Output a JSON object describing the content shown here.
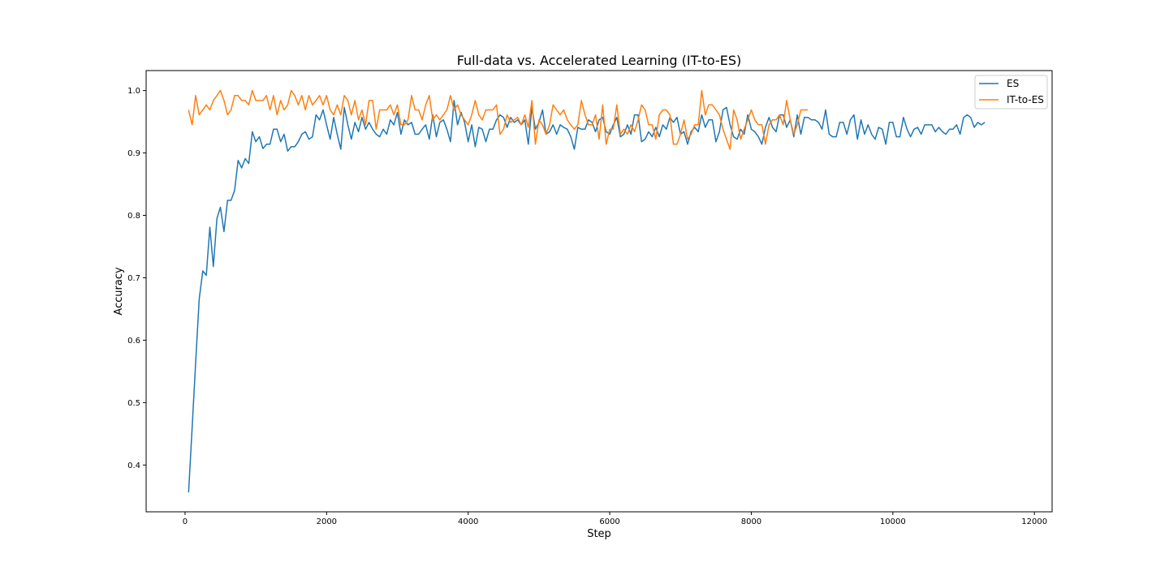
{
  "chart_data": {
    "type": "line",
    "title": "Full-data vs. Accelerated Learning (IT-to-ES)",
    "xlabel": "Step",
    "ylabel": "Accuracy",
    "xlim": [
      -550,
      12250
    ],
    "ylim": [
      0.325,
      1.032
    ],
    "xticks": [
      0,
      2000,
      4000,
      6000,
      8000,
      10000,
      12000
    ],
    "yticks": [
      0.4,
      0.5,
      0.6,
      0.7,
      0.8,
      0.9,
      1.0
    ],
    "xtick_labels": [
      "0",
      "2000",
      "4000",
      "6000",
      "8000",
      "10000",
      "12000"
    ],
    "ytick_labels": [
      "0.4",
      "0.5",
      "0.6",
      "0.7",
      "0.8",
      "0.9",
      "1.0"
    ],
    "grid": false,
    "legend": "top-right",
    "series": [
      {
        "name": "ES",
        "color": "#1f77b4",
        "x_start": 50,
        "x_step": 50,
        "values": [
          0.356,
          0.46,
          0.564,
          0.666,
          0.711,
          0.704,
          0.781,
          0.718,
          0.795,
          0.813,
          0.774,
          0.824,
          0.824,
          0.84,
          0.888,
          0.876,
          0.891,
          0.883,
          0.934,
          0.918,
          0.926,
          0.907,
          0.914,
          0.914,
          0.938,
          0.938,
          0.918,
          0.93,
          0.903,
          0.91,
          0.91,
          0.918,
          0.93,
          0.934,
          0.922,
          0.926,
          0.961,
          0.953,
          0.969,
          0.945,
          0.922,
          0.957,
          0.93,
          0.906,
          0.973,
          0.945,
          0.922,
          0.949,
          0.934,
          0.957,
          0.938,
          0.949,
          0.938,
          0.93,
          0.926,
          0.938,
          0.93,
          0.953,
          0.945,
          0.965,
          0.93,
          0.953,
          0.945,
          0.949,
          0.93,
          0.93,
          0.938,
          0.945,
          0.922,
          0.961,
          0.926,
          0.949,
          0.953,
          0.938,
          0.918,
          0.984,
          0.945,
          0.965,
          0.949,
          0.918,
          0.945,
          0.91,
          0.941,
          0.938,
          0.918,
          0.938,
          0.938,
          0.953,
          0.961,
          0.957,
          0.941,
          0.957,
          0.949,
          0.953,
          0.945,
          0.953,
          0.914,
          0.973,
          0.938,
          0.949,
          0.969,
          0.93,
          0.934,
          0.945,
          0.93,
          0.945,
          0.941,
          0.938,
          0.926,
          0.906,
          0.941,
          0.938,
          0.938,
          0.953,
          0.949,
          0.934,
          0.953,
          0.957,
          0.934,
          0.93,
          0.945,
          0.957,
          0.926,
          0.93,
          0.945,
          0.93,
          0.961,
          0.961,
          0.918,
          0.922,
          0.934,
          0.926,
          0.941,
          0.926,
          0.945,
          0.938,
          0.957,
          0.949,
          0.957,
          0.93,
          0.934,
          0.914,
          0.934,
          0.941,
          0.934,
          0.961,
          0.941,
          0.953,
          0.953,
          0.918,
          0.934,
          0.969,
          0.973,
          0.945,
          0.926,
          0.922,
          0.938,
          0.93,
          0.961,
          0.938,
          0.934,
          0.926,
          0.914,
          0.941,
          0.957,
          0.941,
          0.934,
          0.961,
          0.961,
          0.941,
          0.953,
          0.926,
          0.961,
          0.93,
          0.957,
          0.957,
          0.953,
          0.953,
          0.949,
          0.938,
          0.969,
          0.93,
          0.926,
          0.926,
          0.949,
          0.949,
          0.93,
          0.953,
          0.961,
          0.922,
          0.953,
          0.93,
          0.945,
          0.93,
          0.922,
          0.941,
          0.938,
          0.914,
          0.949,
          0.949,
          0.926,
          0.926,
          0.957,
          0.938,
          0.926,
          0.938,
          0.941,
          0.93,
          0.945,
          0.945,
          0.945,
          0.934,
          0.941,
          0.934,
          0.93,
          0.938,
          0.938,
          0.945,
          0.93,
          0.957,
          0.961,
          0.957,
          0.941,
          0.949,
          0.945,
          0.949
        ]
      },
      {
        "name": "IT-to-ES",
        "color": "#ff7f0e",
        "x_start": 50,
        "x_step": 50,
        "values": [
          0.969,
          0.945,
          0.992,
          0.961,
          0.969,
          0.977,
          0.969,
          0.984,
          0.992,
          1.0,
          0.984,
          0.961,
          0.969,
          0.992,
          0.992,
          0.984,
          0.984,
          0.977,
          1.0,
          0.984,
          0.984,
          0.984,
          0.992,
          0.969,
          0.992,
          0.961,
          0.984,
          0.969,
          0.977,
          1.0,
          0.992,
          0.977,
          0.992,
          0.969,
          0.992,
          0.977,
          0.984,
          0.992,
          0.977,
          0.992,
          0.969,
          0.961,
          0.977,
          0.961,
          0.992,
          0.984,
          0.961,
          0.984,
          0.953,
          0.969,
          0.945,
          0.984,
          0.984,
          0.938,
          0.969,
          0.969,
          0.969,
          0.977,
          0.961,
          0.977,
          0.945,
          0.945,
          0.953,
          0.992,
          0.969,
          0.969,
          0.953,
          0.977,
          0.992,
          0.953,
          0.961,
          0.953,
          0.961,
          0.969,
          0.992,
          0.969,
          0.977,
          0.961,
          0.953,
          0.945,
          0.961,
          0.984,
          0.961,
          0.953,
          0.969,
          0.969,
          0.969,
          0.977,
          0.93,
          0.938,
          0.961,
          0.949,
          0.953,
          0.957,
          0.945,
          0.961,
          0.941,
          0.984,
          0.914,
          0.953,
          0.945,
          0.93,
          0.945,
          0.977,
          0.969,
          0.961,
          0.969,
          0.953,
          0.945,
          0.938,
          0.945,
          0.984,
          0.961,
          0.945,
          0.945,
          0.961,
          0.922,
          0.977,
          0.914,
          0.938,
          0.938,
          0.977,
          0.93,
          0.938,
          0.93,
          0.945,
          0.934,
          0.953,
          0.977,
          0.969,
          0.945,
          0.945,
          0.922,
          0.961,
          0.969,
          0.969,
          0.961,
          0.914,
          0.914,
          0.93,
          0.953,
          0.922,
          0.93,
          0.945,
          0.945,
          1.0,
          0.961,
          0.977,
          0.977,
          0.969,
          0.961,
          0.938,
          0.922,
          0.906,
          0.969,
          0.953,
          0.922,
          0.938,
          0.953,
          0.969,
          0.953,
          0.945,
          0.945,
          0.914,
          0.945,
          0.953,
          0.953,
          0.961,
          0.945,
          0.984,
          0.953,
          0.93,
          0.945,
          0.969,
          0.969,
          0.969
        ]
      }
    ]
  }
}
